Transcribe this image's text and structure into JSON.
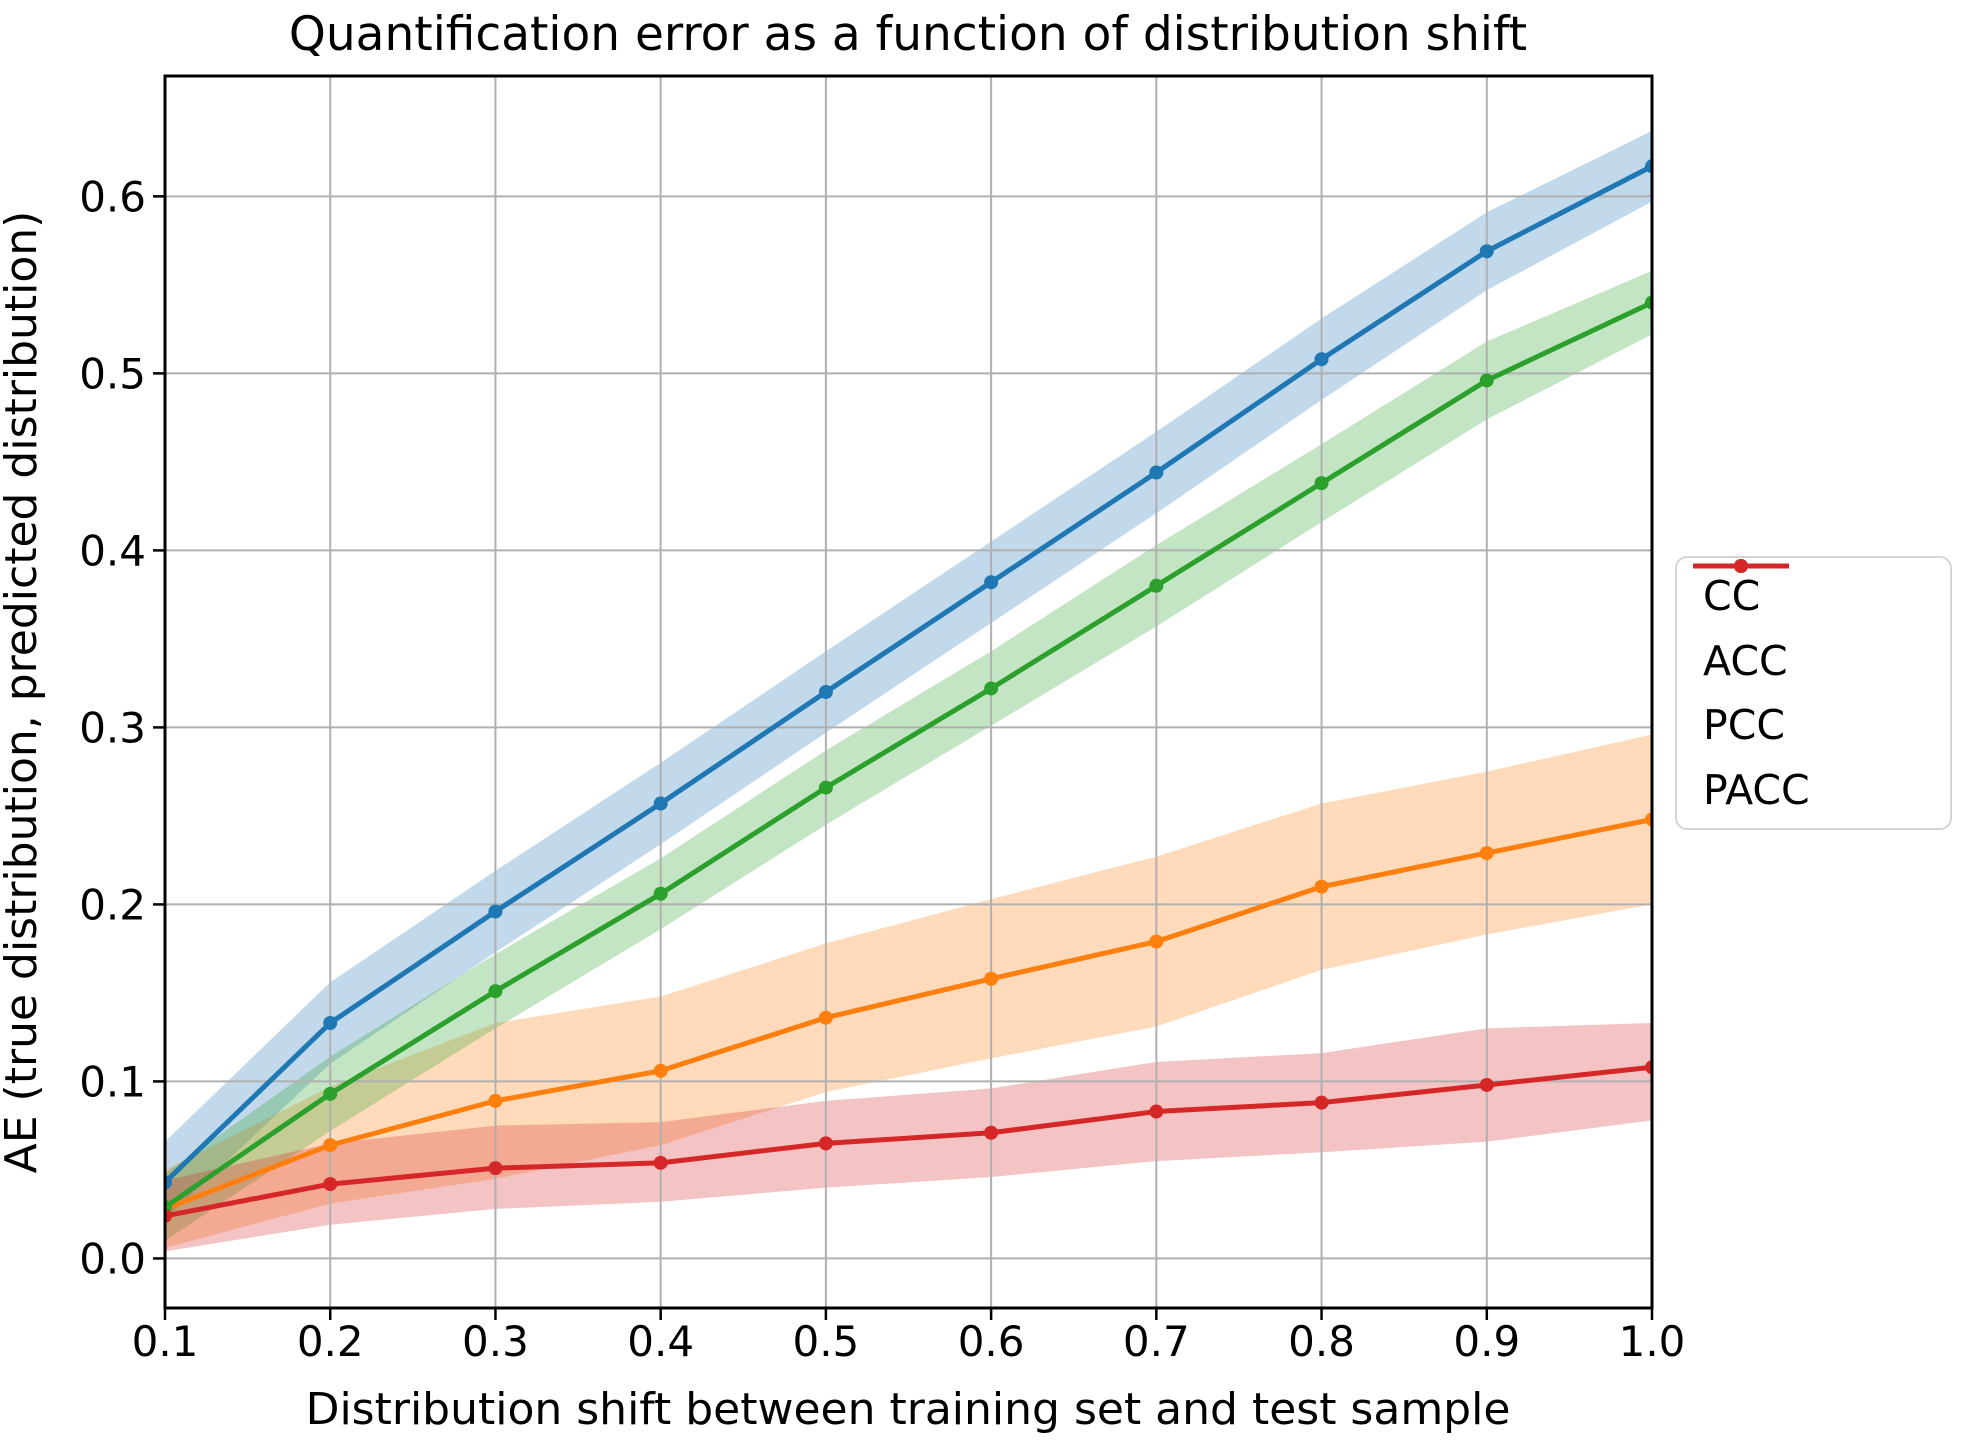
{
  "chart_data": {
    "type": "line",
    "title": "Quantification error as a function of distribution shift",
    "xlabel": "Distribution shift between training set and test sample",
    "ylabel": "AE (true distribution, predicted distribution)",
    "grid": true,
    "legend_position": "outside right, vertically centered",
    "xlim": [
      0.1,
      1.0
    ],
    "ylim": [
      -0.028,
      0.668
    ],
    "x": [
      0.1,
      0.2,
      0.3,
      0.4,
      0.5,
      0.6,
      0.7,
      0.8,
      0.9,
      1.0
    ],
    "x_tick_labels": [
      "0.1",
      "0.2",
      "0.3",
      "0.4",
      "0.5",
      "0.6",
      "0.7",
      "0.8",
      "0.9",
      "1.0"
    ],
    "y_ticks": [
      0.0,
      0.1,
      0.2,
      0.3,
      0.4,
      0.5,
      0.6
    ],
    "y_tick_labels": [
      "0.0",
      "0.1",
      "0.2",
      "0.3",
      "0.4",
      "0.5",
      "0.6"
    ],
    "band_opacity": 0.28,
    "grid_color": "#b0b0b0",
    "series": [
      {
        "name": "CC",
        "color": "#1f77b4",
        "values": [
          0.043,
          0.133,
          0.196,
          0.257,
          0.32,
          0.382,
          0.444,
          0.508,
          0.569,
          0.617
        ],
        "band_lower": [
          0.022,
          0.11,
          0.173,
          0.234,
          0.297,
          0.359,
          0.421,
          0.485,
          0.547,
          0.597
        ],
        "band_upper": [
          0.066,
          0.156,
          0.219,
          0.28,
          0.343,
          0.405,
          0.467,
          0.531,
          0.591,
          0.637
        ]
      },
      {
        "name": "ACC",
        "color": "#ff7f0e",
        "values": [
          0.028,
          0.064,
          0.089,
          0.106,
          0.136,
          0.158,
          0.179,
          0.21,
          0.229,
          0.248
        ],
        "band_lower": [
          0.006,
          0.031,
          0.045,
          0.064,
          0.094,
          0.113,
          0.131,
          0.163,
          0.183,
          0.2
        ],
        "band_upper": [
          0.05,
          0.097,
          0.133,
          0.148,
          0.178,
          0.203,
          0.227,
          0.257,
          0.275,
          0.296
        ]
      },
      {
        "name": "PCC",
        "color": "#2ca02c",
        "values": [
          0.029,
          0.093,
          0.151,
          0.206,
          0.266,
          0.322,
          0.38,
          0.438,
          0.496,
          0.54
        ],
        "band_lower": [
          0.01,
          0.072,
          0.13,
          0.186,
          0.245,
          0.301,
          0.357,
          0.416,
          0.474,
          0.522
        ],
        "band_upper": [
          0.048,
          0.114,
          0.172,
          0.226,
          0.287,
          0.343,
          0.403,
          0.46,
          0.518,
          0.558
        ]
      },
      {
        "name": "PACC",
        "color": "#d62728",
        "values": [
          0.024,
          0.042,
          0.051,
          0.054,
          0.065,
          0.071,
          0.083,
          0.088,
          0.098,
          0.108
        ],
        "band_lower": [
          0.004,
          0.019,
          0.028,
          0.032,
          0.04,
          0.046,
          0.055,
          0.06,
          0.066,
          0.078
        ],
        "band_upper": [
          0.044,
          0.065,
          0.075,
          0.077,
          0.089,
          0.096,
          0.111,
          0.116,
          0.13,
          0.133
        ]
      }
    ]
  }
}
